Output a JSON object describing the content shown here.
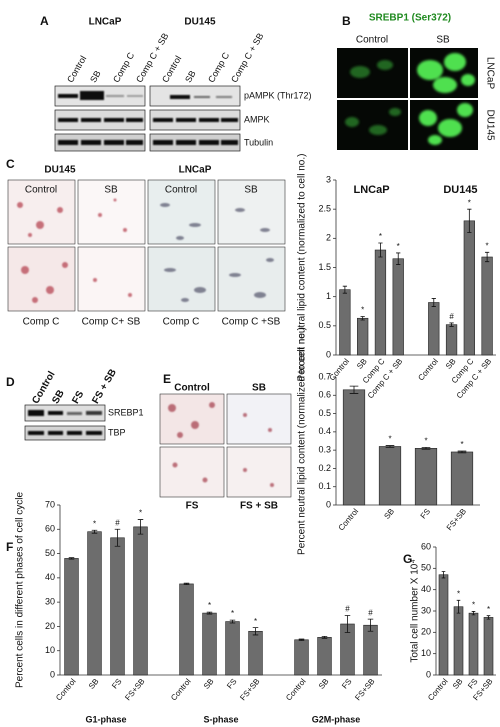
{
  "figure": {
    "A": {
      "letter": "A",
      "cell_lines": [
        "LNCaP",
        "DU145"
      ],
      "lanes": [
        [
          "Control",
          "SB",
          "Comp C",
          "Comp C + SB"
        ],
        [
          "Control",
          "SB",
          "Comp C",
          "Comp C + SB"
        ]
      ],
      "rows": [
        "pAMPK (Thr172)",
        "AMPK",
        "Tubulin"
      ]
    },
    "B": {
      "letter": "B",
      "title": "SREBP1 (Ser372)",
      "columns": [
        "Control",
        "SB"
      ],
      "rows": [
        "LNCaP",
        "DU145"
      ]
    },
    "C": {
      "letter": "C",
      "cell_lines": [
        "DU145",
        "LNCaP"
      ],
      "images": [
        [
          "Control",
          "SB",
          "Control",
          "SB"
        ],
        [
          "Comp C",
          "Comp C+ SB",
          "Comp C",
          "Comp C +SB"
        ]
      ]
    },
    "D": {
      "letter": "D",
      "lanes": [
        "Control",
        "SB",
        "FS",
        "FS + SB"
      ],
      "rows": [
        "SREBP1",
        "TBP"
      ]
    },
    "E": {
      "letter": "E",
      "images": [
        [
          "Control",
          "SB"
        ],
        [
          "FS",
          "FS + SB"
        ]
      ]
    },
    "F": {
      "letter": "F"
    },
    "G": {
      "letter": "G"
    }
  },
  "chart_data": [
    {
      "type": "bar",
      "ylabel": "Percent neutral lipid content (normalized to cell no.)",
      "color": "#6d6d6d",
      "ylim": [
        0,
        3
      ],
      "yticks": [
        0,
        0.5,
        1,
        1.5,
        2,
        2.5,
        3
      ],
      "groups": [
        {
          "label": "LNCaP",
          "categories": [
            "Control",
            "SB",
            "Comp C",
            "Comp C + SB"
          ],
          "values": [
            1.12,
            0.63,
            1.8,
            1.65
          ],
          "errors": [
            0.06,
            0.03,
            0.12,
            0.1
          ],
          "markers": [
            null,
            "*",
            "*",
            "*"
          ]
        },
        {
          "label": "DU145",
          "categories": [
            "Control",
            "SB",
            "Comp C",
            "Comp C + SB"
          ],
          "values": [
            0.9,
            0.52,
            2.3,
            1.68
          ],
          "errors": [
            0.07,
            0.03,
            0.2,
            0.08
          ],
          "markers": [
            null,
            "#",
            "*",
            "*"
          ]
        }
      ]
    },
    {
      "type": "bar",
      "ylabel": "Percent neutral lipid content (normalized to cell no.)",
      "color": "#6d6d6d",
      "ylim": [
        0,
        0.7
      ],
      "yticks": [
        0,
        0.1,
        0.2,
        0.3,
        0.4,
        0.5,
        0.6,
        0.7
      ],
      "categories": [
        "Control",
        "SB",
        "FS",
        "FS+SB"
      ],
      "values": [
        0.63,
        0.32,
        0.31,
        0.29
      ],
      "errors": [
        0.02,
        0.005,
        0.005,
        0.005
      ],
      "markers": [
        null,
        "*",
        "*",
        "*"
      ]
    },
    {
      "type": "bar",
      "ylabel": "Percent cells in different phases of cell cycle",
      "color": "#6d6d6d",
      "ylim": [
        0,
        70
      ],
      "yticks": [
        0,
        10,
        20,
        30,
        40,
        50,
        60,
        70
      ],
      "groups": [
        {
          "label": "G1-phase",
          "categories": [
            "Control",
            "SB",
            "FS",
            "FS+SB"
          ],
          "values": [
            48,
            59,
            56.5,
            61
          ],
          "errors": [
            0.3,
            0.6,
            3.5,
            3
          ],
          "markers": [
            null,
            "*",
            "#",
            "*"
          ]
        },
        {
          "label": "S-phase",
          "categories": [
            "Control",
            "SB",
            "FS",
            "FS+SB"
          ],
          "values": [
            37.5,
            25.5,
            22,
            18
          ],
          "errors": [
            0.3,
            0.4,
            0.6,
            1.5
          ],
          "markers": [
            null,
            "*",
            "*",
            "*"
          ]
        },
        {
          "label": "G2M-phase",
          "categories": [
            "Control",
            "SB",
            "FS",
            "FS+SB"
          ],
          "values": [
            14.5,
            15.5,
            21,
            20.5
          ],
          "errors": [
            0.3,
            0.4,
            3.5,
            2.5
          ],
          "markers": [
            null,
            null,
            "#",
            "#"
          ]
        }
      ]
    },
    {
      "type": "bar",
      "ylabel": "Total cell number X 10⁴",
      "color": "#6d6d6d",
      "ylim": [
        0,
        60
      ],
      "yticks": [
        0,
        10,
        20,
        30,
        40,
        50,
        60
      ],
      "categories": [
        "Control",
        "SB",
        "FS",
        "FS+SB"
      ],
      "values": [
        47,
        32,
        29,
        27
      ],
      "errors": [
        1.5,
        3,
        0.8,
        0.8
      ],
      "markers": [
        null,
        "*",
        "*",
        "*"
      ]
    }
  ]
}
